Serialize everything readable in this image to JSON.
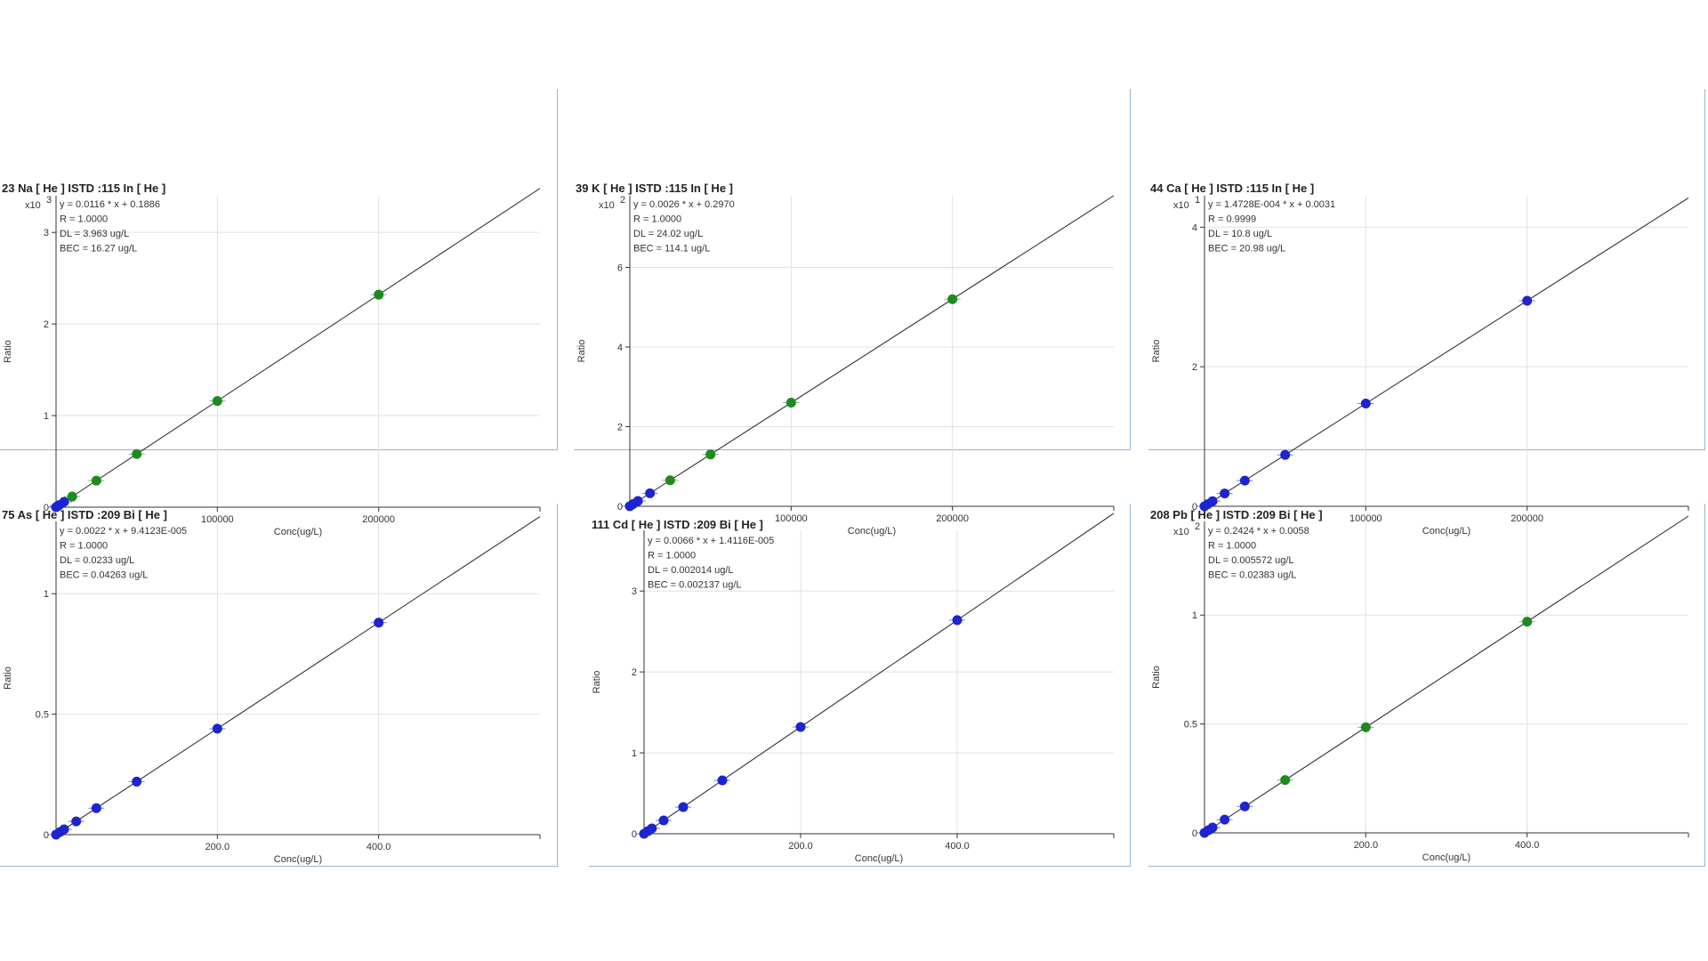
{
  "colors": {
    "blue": "#1d24d0",
    "green": "#1f8a1f",
    "fit_line": "#222222",
    "grid": "#e0e0e0",
    "panel_border": "#8fb6d8"
  },
  "axis_labels": {
    "x": "Conc(ug/L)",
    "y": "Ratio"
  },
  "chart_data": [
    {
      "type": "scatter",
      "title": "23  Na  [ He ]  ISTD :115  In  [ He ]",
      "multiplier": "x10",
      "exponent": "3",
      "stats": [
        "y = 0.0116 * x  + 0.1886",
        "R =  1.0000",
        "DL = 3.963 ug/L",
        "BEC = 16.27 ug/L"
      ],
      "xlabel": "Conc(ug/L)",
      "ylabel": "Ratio",
      "xlim": [
        0,
        300000
      ],
      "ylim": [
        0,
        3.4
      ],
      "xticks": [
        100000,
        200000
      ],
      "xtick_labels": [
        "100000",
        "200000"
      ],
      "yticks": [
        0,
        1,
        2,
        3
      ],
      "ytick_labels": [
        "0",
        "1",
        "2",
        "3"
      ],
      "fit": {
        "slope": 1.16e-05,
        "intercept": 0.0001886
      },
      "points": [
        {
          "x": 0,
          "y": 0.0002,
          "c": "blue"
        },
        {
          "x": 1000,
          "y": 0.012,
          "c": "blue"
        },
        {
          "x": 2000,
          "y": 0.023,
          "c": "blue"
        },
        {
          "x": 5000,
          "y": 0.058,
          "c": "blue"
        },
        {
          "x": 10000,
          "y": 0.116,
          "c": "green"
        },
        {
          "x": 25000,
          "y": 0.29,
          "c": "green"
        },
        {
          "x": 50000,
          "y": 0.58,
          "c": "green"
        },
        {
          "x": 100000,
          "y": 1.16,
          "c": "green"
        },
        {
          "x": 200000,
          "y": 2.32,
          "c": "green"
        }
      ]
    },
    {
      "type": "scatter",
      "title": "39  K  [ He ]  ISTD :115  In  [ He ]",
      "multiplier": "x10",
      "exponent": "2",
      "stats": [
        "y = 0.0026 * x  + 0.2970",
        "R =  1.0000",
        "DL = 24.02 ug/L",
        "BEC = 114.1 ug/L"
      ],
      "xlabel": "Conc(ug/L)",
      "ylabel": "Ratio",
      "xlim": [
        0,
        300000
      ],
      "ylim": [
        0,
        7.8
      ],
      "xticks": [
        100000,
        200000
      ],
      "xtick_labels": [
        "100000",
        "200000"
      ],
      "yticks": [
        0,
        2,
        4,
        6
      ],
      "ytick_labels": [
        "0",
        "2",
        "4",
        "6"
      ],
      "fit": {
        "slope": 2.6e-05,
        "intercept": 0.00297
      },
      "points": [
        {
          "x": 0,
          "y": 0.003,
          "c": "blue"
        },
        {
          "x": 2000,
          "y": 0.055,
          "c": "blue"
        },
        {
          "x": 5000,
          "y": 0.133,
          "c": "blue"
        },
        {
          "x": 12500,
          "y": 0.328,
          "c": "blue"
        },
        {
          "x": 25000,
          "y": 0.653,
          "c": "green"
        },
        {
          "x": 50000,
          "y": 1.303,
          "c": "green"
        },
        {
          "x": 100000,
          "y": 2.603,
          "c": "green"
        },
        {
          "x": 200000,
          "y": 5.203,
          "c": "green"
        }
      ]
    },
    {
      "type": "scatter",
      "title": "44  Ca  [ He ]  ISTD :115  In  [ He ]",
      "multiplier": "x10",
      "exponent": "1",
      "stats": [
        "y = 1.4728E-004 * x  + 0.0031",
        "R =  0.9999",
        "DL = 10.8 ug/L",
        "BEC = 20.98 ug/L"
      ],
      "xlabel": "Conc(ug/L)",
      "ylabel": "Ratio",
      "xlim": [
        0,
        300000
      ],
      "ylim": [
        0,
        4.45
      ],
      "xticks": [
        100000,
        200000
      ],
      "xtick_labels": [
        "100000",
        "200000"
      ],
      "yticks": [
        0,
        2,
        4
      ],
      "ytick_labels": [
        "0",
        "2",
        "4"
      ],
      "fit": {
        "slope": 1.4728e-05,
        "intercept": 0.00031
      },
      "points": [
        {
          "x": 0,
          "y": 0.0003,
          "c": "blue"
        },
        {
          "x": 2000,
          "y": 0.03,
          "c": "blue"
        },
        {
          "x": 5000,
          "y": 0.074,
          "c": "blue"
        },
        {
          "x": 12500,
          "y": 0.184,
          "c": "blue"
        },
        {
          "x": 25000,
          "y": 0.368,
          "c": "blue"
        },
        {
          "x": 50000,
          "y": 0.737,
          "c": "blue"
        },
        {
          "x": 100000,
          "y": 1.473,
          "c": "blue"
        },
        {
          "x": 200000,
          "y": 2.946,
          "c": "blue"
        }
      ]
    },
    {
      "type": "scatter",
      "title": "75  As  [ He ]  ISTD :209  Bi  [ He ]",
      "multiplier": "",
      "exponent": "",
      "stats": [
        "y = 0.0022 * x  + 9.4123E-005",
        "R =  1.0000",
        "DL = 0.0233 ug/L",
        "BEC = 0.04263 ug/L"
      ],
      "xlabel": "Conc(ug/L)",
      "ylabel": "Ratio",
      "xlim": [
        0,
        600
      ],
      "ylim": [
        0,
        1.3
      ],
      "xticks": [
        200,
        400
      ],
      "xtick_labels": [
        "200.0",
        "400.0"
      ],
      "yticks": [
        0,
        0.5,
        1
      ],
      "ytick_labels": [
        "0",
        "0.5",
        "1"
      ],
      "fit": {
        "slope": 0.0022,
        "intercept": 9.4e-05
      },
      "points": [
        {
          "x": 0,
          "y": 0.0001,
          "c": "blue"
        },
        {
          "x": 5,
          "y": 0.011,
          "c": "blue"
        },
        {
          "x": 10,
          "y": 0.022,
          "c": "blue"
        },
        {
          "x": 25,
          "y": 0.055,
          "c": "blue"
        },
        {
          "x": 50,
          "y": 0.11,
          "c": "blue"
        },
        {
          "x": 100,
          "y": 0.22,
          "c": "blue"
        },
        {
          "x": 200,
          "y": 0.44,
          "c": "blue"
        },
        {
          "x": 400,
          "y": 0.88,
          "c": "blue"
        }
      ]
    },
    {
      "type": "scatter",
      "title": "111  Cd  [ He ]  ISTD :209  Bi  [ He ]",
      "multiplier": "",
      "exponent": "",
      "stats": [
        "y = 0.0066 * x  + 1.4116E-005",
        "R =  1.0000",
        "DL = 0.002014 ug/L",
        "BEC = 0.002137 ug/L"
      ],
      "xlabel": "Conc(ug/L)",
      "ylabel": "Ratio",
      "xlim": [
        0,
        600
      ],
      "ylim": [
        0,
        3.75
      ],
      "xticks": [
        200,
        400
      ],
      "xtick_labels": [
        "200.0",
        "400.0"
      ],
      "yticks": [
        0,
        1,
        2,
        3
      ],
      "ytick_labels": [
        "0",
        "1",
        "2",
        "3"
      ],
      "fit": {
        "slope": 0.0066,
        "intercept": 1.4e-05
      },
      "points": [
        {
          "x": 0,
          "y": 1e-05,
          "c": "blue"
        },
        {
          "x": 5,
          "y": 0.033,
          "c": "blue"
        },
        {
          "x": 10,
          "y": 0.066,
          "c": "blue"
        },
        {
          "x": 25,
          "y": 0.165,
          "c": "blue"
        },
        {
          "x": 50,
          "y": 0.33,
          "c": "blue"
        },
        {
          "x": 100,
          "y": 0.66,
          "c": "blue"
        },
        {
          "x": 200,
          "y": 1.32,
          "c": "blue"
        },
        {
          "x": 400,
          "y": 2.64,
          "c": "blue"
        }
      ]
    },
    {
      "type": "scatter",
      "title": "208  Pb  [ He ]  ISTD :209  Bi  [ He ]",
      "multiplier": "x10",
      "exponent": "2",
      "stats": [
        "y = 0.2424 * x  + 0.0058",
        "R =  1.0000",
        "DL = 0.005572 ug/L",
        "BEC = 0.02383 ug/L"
      ],
      "xlabel": "Conc(ug/L)",
      "ylabel": "Ratio",
      "xlim": [
        0,
        600
      ],
      "ylim": [
        0,
        1.43
      ],
      "xticks": [
        200,
        400
      ],
      "xtick_labels": [
        "200.0",
        "400.0"
      ],
      "yticks": [
        0,
        0.5,
        1
      ],
      "ytick_labels": [
        "0",
        "0.5",
        "1"
      ],
      "fit": {
        "slope": 0.002424,
        "intercept": 5.8e-05
      },
      "points": [
        {
          "x": 0,
          "y": 6e-05,
          "c": "blue"
        },
        {
          "x": 5,
          "y": 0.0122,
          "c": "blue"
        },
        {
          "x": 10,
          "y": 0.0243,
          "c": "blue"
        },
        {
          "x": 25,
          "y": 0.0607,
          "c": "blue"
        },
        {
          "x": 50,
          "y": 0.1213,
          "c": "blue"
        },
        {
          "x": 100,
          "y": 0.2425,
          "c": "green"
        },
        {
          "x": 200,
          "y": 0.4849,
          "c": "green"
        },
        {
          "x": 400,
          "y": 0.9697,
          "c": "green"
        }
      ]
    }
  ]
}
